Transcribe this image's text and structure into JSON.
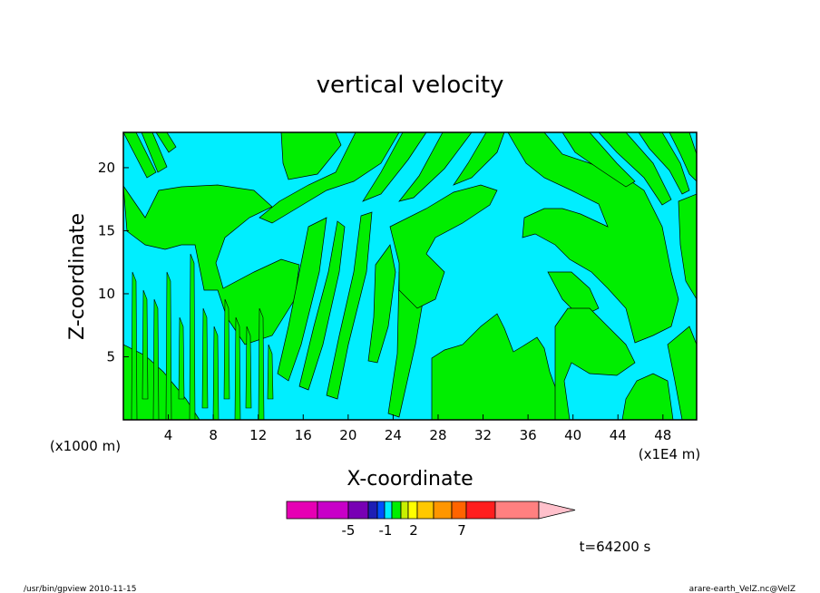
{
  "chart_data": {
    "type": "heatmap",
    "title": "vertical velocity",
    "xlabel": "X-coordinate",
    "ylabel": "Z-coordinate",
    "x_multiplier_label": "(x1E4 m)",
    "y_multiplier_label": "(x1000 m)",
    "x_ticks": [
      4,
      8,
      12,
      16,
      20,
      24,
      28,
      32,
      36,
      40,
      44,
      48
    ],
    "y_ticks": [
      5,
      10,
      15,
      20
    ],
    "xlim": [
      0,
      51
    ],
    "ylim": [
      0,
      22.8
    ],
    "background_color": "#00eeff",
    "fill_color": "#00ee00",
    "colorbar": {
      "colors": [
        "#e600b4",
        "#c800c8",
        "#7800b4",
        "#1e1eb4",
        "#0050ff",
        "#00eeff",
        "#00ee00",
        "#c8f000",
        "#ffff00",
        "#ffc800",
        "#ff9600",
        "#ff6400",
        "#ff1e1e",
        "#ff8080",
        "#ffc0cb"
      ],
      "labels": [
        "-5",
        "-1",
        "2",
        "7"
      ]
    },
    "time_label": "t=64200 s"
  },
  "footer": {
    "left": "/usr/bin/gpview   2010-11-15",
    "right": "arare-earth_VelZ.nc@VelZ"
  }
}
